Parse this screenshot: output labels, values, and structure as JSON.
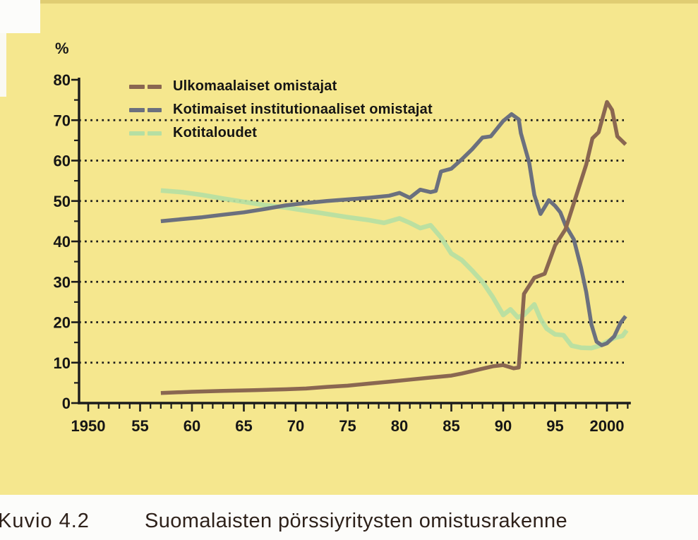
{
  "figure": {
    "caption_label": "Kuvio 4.2",
    "caption_title": "Suomalaisten pörssiyritysten omistusrakenne",
    "y_unit_label": "%"
  },
  "colors": {
    "paper": "#f5e78e",
    "axis": "#1b1b1b",
    "foreign_line": "#8a6751",
    "institutional_line": "#6b707e",
    "households_line": "#b5dfa3",
    "caption_text": "#2e211a"
  },
  "legend": [
    {
      "label": "Ulkomaalaiset omistajat",
      "color": "#8a6751"
    },
    {
      "label": "Kotimaiset institutionaaliset omistajat",
      "color": "#6b707e"
    },
    {
      "label": "Kotitaloudet",
      "color": "#b5dfa3"
    }
  ],
  "chart_data": {
    "type": "line",
    "title": "Suomalaisten pörssiyritysten omistusrakenne",
    "xlabel": "",
    "ylabel": "%",
    "xlim": [
      1950,
      2002.3
    ],
    "ylim": [
      0,
      80
    ],
    "grid": "dotted-horizontal",
    "grid_values": [
      10,
      20,
      30,
      40,
      50,
      60,
      70
    ],
    "y_major_ticks": [
      0,
      10,
      20,
      30,
      40,
      50,
      60,
      70,
      80
    ],
    "y_minor_ticks": [
      5,
      15,
      25,
      35,
      45,
      55,
      65,
      75
    ],
    "x_tick_step_years": 1,
    "x_major_step_years": 5,
    "x_tick_labels": [
      {
        "label": "1950",
        "year": 1950
      },
      {
        "label": "55",
        "year": 1955
      },
      {
        "label": "60",
        "year": 1960
      },
      {
        "label": "65",
        "year": 1965
      },
      {
        "label": "70",
        "year": 1970
      },
      {
        "label": "75",
        "year": 1975
      },
      {
        "label": "80",
        "year": 1980
      },
      {
        "label": "85",
        "year": 1985
      },
      {
        "label": "90",
        "year": 1990
      },
      {
        "label": "95",
        "year": 1995
      },
      {
        "label": "2000",
        "year": 2000
      }
    ],
    "legend_position": "top-left-inside",
    "series": [
      {
        "name": "Kotitaloudet",
        "color": "#b5dfa3",
        "width": 6.5,
        "opacity": 0.92,
        "points": [
          [
            1957,
            52.6
          ],
          [
            1959,
            52.2
          ],
          [
            1961,
            51.5
          ],
          [
            1963,
            50.6
          ],
          [
            1965,
            49.8
          ],
          [
            1967,
            49.0
          ],
          [
            1969,
            48.4
          ],
          [
            1971,
            47.6
          ],
          [
            1973,
            46.8
          ],
          [
            1975,
            46.0
          ],
          [
            1977,
            45.3
          ],
          [
            1978.5,
            44.6
          ],
          [
            1980,
            45.7
          ],
          [
            1981,
            44.6
          ],
          [
            1982,
            43.3
          ],
          [
            1983,
            44.0
          ],
          [
            1984,
            41.0
          ],
          [
            1985,
            37.0
          ],
          [
            1986,
            35.4
          ],
          [
            1987,
            32.8
          ],
          [
            1988,
            30.0
          ],
          [
            1989,
            26.2
          ],
          [
            1990,
            21.8
          ],
          [
            1990.7,
            23.2
          ],
          [
            1991.4,
            21.2
          ],
          [
            1992,
            21.8
          ],
          [
            1993,
            24.4
          ],
          [
            1993.6,
            20.8
          ],
          [
            1994.2,
            18.4
          ],
          [
            1995,
            17.0
          ],
          [
            1995.8,
            16.8
          ],
          [
            1996.6,
            14.2
          ],
          [
            1997.5,
            13.7
          ],
          [
            1998.5,
            13.6
          ],
          [
            1999.3,
            14.2
          ],
          [
            2000,
            15.2
          ],
          [
            2000.8,
            16.2
          ],
          [
            2001.5,
            16.6
          ],
          [
            2001.9,
            18.0
          ]
        ]
      },
      {
        "name": "Kotimaiset institutionaaliset omistajat",
        "color": "#6b707e",
        "width": 5.5,
        "opacity": 1,
        "points": [
          [
            1957,
            45.0
          ],
          [
            1959,
            45.5
          ],
          [
            1961,
            46.0
          ],
          [
            1963,
            46.6
          ],
          [
            1965,
            47.2
          ],
          [
            1967,
            48.0
          ],
          [
            1969,
            48.9
          ],
          [
            1971,
            49.5
          ],
          [
            1973,
            50.0
          ],
          [
            1975,
            50.4
          ],
          [
            1977,
            50.8
          ],
          [
            1979,
            51.3
          ],
          [
            1980,
            52.0
          ],
          [
            1981,
            50.8
          ],
          [
            1982,
            52.8
          ],
          [
            1983,
            52.2
          ],
          [
            1983.5,
            52.5
          ],
          [
            1984,
            57.3
          ],
          [
            1985,
            58.0
          ],
          [
            1986,
            60.3
          ],
          [
            1987,
            62.8
          ],
          [
            1988,
            65.7
          ],
          [
            1988.8,
            66.0
          ],
          [
            1990,
            69.8
          ],
          [
            1990.8,
            71.5
          ],
          [
            1991.5,
            70.2
          ],
          [
            1991.7,
            66.8
          ],
          [
            1992.5,
            59.5
          ],
          [
            1993,
            51.5
          ],
          [
            1993.6,
            46.8
          ],
          [
            1994.4,
            50.2
          ],
          [
            1995,
            48.8
          ],
          [
            1995.5,
            47.2
          ],
          [
            1996,
            44.0
          ],
          [
            1996.8,
            40.5
          ],
          [
            1997.5,
            33.5
          ],
          [
            1998,
            27.5
          ],
          [
            1998.5,
            19.5
          ],
          [
            1999,
            15.2
          ],
          [
            1999.5,
            14.3
          ],
          [
            2000,
            14.8
          ],
          [
            2000.7,
            16.5
          ],
          [
            2001.3,
            19.8
          ],
          [
            2001.8,
            21.5
          ]
        ]
      },
      {
        "name": "Ulkomaalaiset omistajat",
        "color": "#8a6751",
        "width": 5.5,
        "opacity": 1,
        "points": [
          [
            1957,
            2.5
          ],
          [
            1960,
            2.8
          ],
          [
            1963,
            3.0
          ],
          [
            1966,
            3.2
          ],
          [
            1969,
            3.4
          ],
          [
            1971,
            3.6
          ],
          [
            1973,
            4.0
          ],
          [
            1975,
            4.3
          ],
          [
            1977,
            4.8
          ],
          [
            1979,
            5.3
          ],
          [
            1981,
            5.8
          ],
          [
            1983,
            6.3
          ],
          [
            1985,
            6.8
          ],
          [
            1986,
            7.3
          ],
          [
            1987,
            7.9
          ],
          [
            1988,
            8.5
          ],
          [
            1989,
            9.1
          ],
          [
            1990,
            9.4
          ],
          [
            1991,
            8.6
          ],
          [
            1991.5,
            8.8
          ],
          [
            1992,
            27.0
          ],
          [
            1993,
            31.0
          ],
          [
            1994,
            32.0
          ],
          [
            1995,
            39.0
          ],
          [
            1996,
            43.0
          ],
          [
            1997,
            51.0
          ],
          [
            1998,
            59.0
          ],
          [
            1998.6,
            65.5
          ],
          [
            1999.2,
            67.0
          ],
          [
            2000,
            74.5
          ],
          [
            2000.5,
            72.5
          ],
          [
            2001,
            66.0
          ],
          [
            2001.8,
            64.0
          ]
        ]
      }
    ]
  }
}
